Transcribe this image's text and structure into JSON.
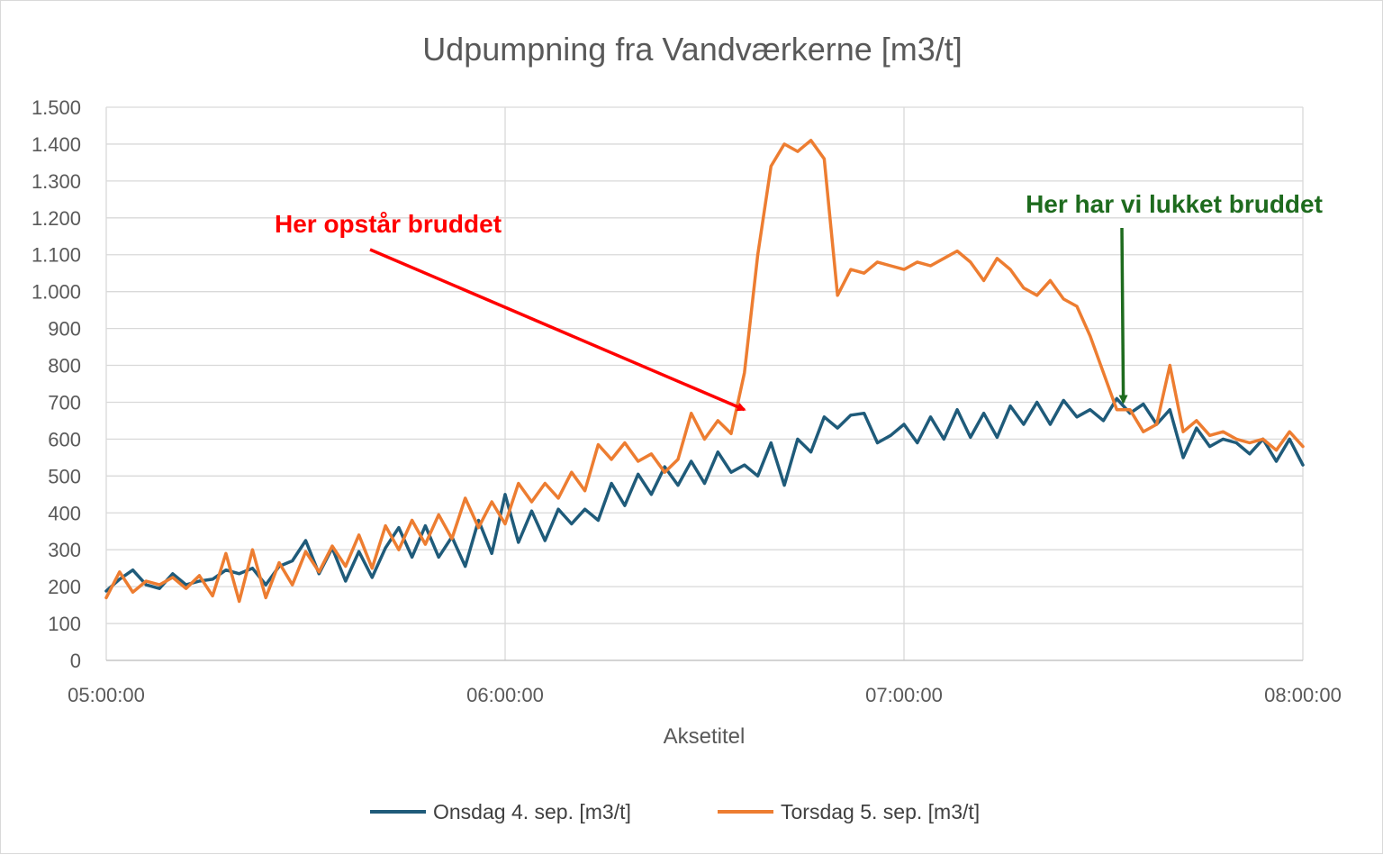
{
  "chart_data": {
    "type": "line",
    "title": "Udpumpning fra Vandværkerne [m3/t]",
    "xlabel": "Aksetitel",
    "ylabel": "",
    "ylim": [
      0,
      1500
    ],
    "y_ticks": [
      0,
      100,
      200,
      300,
      400,
      500,
      600,
      700,
      800,
      900,
      1000,
      1100,
      1200,
      1300,
      1400,
      1500
    ],
    "y_tick_labels": [
      "0",
      "100",
      "200",
      "300",
      "400",
      "500",
      "600",
      "700",
      "800",
      "900",
      "1.000",
      "1.100",
      "1.200",
      "1.300",
      "1.400",
      "1.500"
    ],
    "x_range": [
      "05:00:00",
      "08:00:00"
    ],
    "x_ticks": [
      "05:00:00",
      "06:00:00",
      "07:00:00",
      "08:00:00"
    ],
    "grid": true,
    "legend_position": "bottom",
    "series": [
      {
        "name": "Onsdag 4. sep. [m3/t]",
        "color": "#1f5b7a",
        "points": [
          [
            "05:00:00",
            188
          ],
          [
            "05:02:00",
            220
          ],
          [
            "05:04:00",
            245
          ],
          [
            "05:06:00",
            205
          ],
          [
            "05:08:00",
            195
          ],
          [
            "05:10:00",
            235
          ],
          [
            "05:12:00",
            205
          ],
          [
            "05:14:00",
            215
          ],
          [
            "05:16:00",
            220
          ],
          [
            "05:18:00",
            245
          ],
          [
            "05:20:00",
            235
          ],
          [
            "05:22:00",
            250
          ],
          [
            "05:24:00",
            205
          ],
          [
            "05:26:00",
            255
          ],
          [
            "05:28:00",
            270
          ],
          [
            "05:30:00",
            325
          ],
          [
            "05:32:00",
            235
          ],
          [
            "05:34:00",
            305
          ],
          [
            "05:36:00",
            215
          ],
          [
            "05:38:00",
            295
          ],
          [
            "05:40:00",
            225
          ],
          [
            "05:42:00",
            305
          ],
          [
            "05:44:00",
            360
          ],
          [
            "05:46:00",
            280
          ],
          [
            "05:48:00",
            365
          ],
          [
            "05:50:00",
            280
          ],
          [
            "05:52:00",
            335
          ],
          [
            "05:54:00",
            255
          ],
          [
            "05:56:00",
            380
          ],
          [
            "05:58:00",
            290
          ],
          [
            "06:00:00",
            450
          ],
          [
            "06:02:00",
            320
          ],
          [
            "06:04:00",
            405
          ],
          [
            "06:06:00",
            325
          ],
          [
            "06:08:00",
            410
          ],
          [
            "06:10:00",
            370
          ],
          [
            "06:12:00",
            410
          ],
          [
            "06:14:00",
            380
          ],
          [
            "06:16:00",
            480
          ],
          [
            "06:18:00",
            420
          ],
          [
            "06:20:00",
            505
          ],
          [
            "06:22:00",
            450
          ],
          [
            "06:24:00",
            525
          ],
          [
            "06:26:00",
            475
          ],
          [
            "06:28:00",
            540
          ],
          [
            "06:30:00",
            480
          ],
          [
            "06:32:00",
            565
          ],
          [
            "06:34:00",
            510
          ],
          [
            "06:36:00",
            530
          ],
          [
            "06:38:00",
            500
          ],
          [
            "06:40:00",
            590
          ],
          [
            "06:42:00",
            475
          ],
          [
            "06:44:00",
            600
          ],
          [
            "06:46:00",
            565
          ],
          [
            "06:48:00",
            660
          ],
          [
            "06:50:00",
            630
          ],
          [
            "06:52:00",
            665
          ],
          [
            "06:54:00",
            670
          ],
          [
            "06:56:00",
            590
          ],
          [
            "06:58:00",
            610
          ],
          [
            "07:00:00",
            640
          ],
          [
            "07:02:00",
            590
          ],
          [
            "07:04:00",
            660
          ],
          [
            "07:06:00",
            600
          ],
          [
            "07:08:00",
            680
          ],
          [
            "07:10:00",
            605
          ],
          [
            "07:12:00",
            670
          ],
          [
            "07:14:00",
            605
          ],
          [
            "07:16:00",
            690
          ],
          [
            "07:18:00",
            640
          ],
          [
            "07:20:00",
            700
          ],
          [
            "07:22:00",
            640
          ],
          [
            "07:24:00",
            705
          ],
          [
            "07:26:00",
            660
          ],
          [
            "07:28:00",
            680
          ],
          [
            "07:30:00",
            650
          ],
          [
            "07:32:00",
            710
          ],
          [
            "07:34:00",
            670
          ],
          [
            "07:36:00",
            695
          ],
          [
            "07:38:00",
            640
          ],
          [
            "07:40:00",
            680
          ],
          [
            "07:42:00",
            550
          ],
          [
            "07:44:00",
            630
          ],
          [
            "07:46:00",
            580
          ],
          [
            "07:48:00",
            600
          ],
          [
            "07:50:00",
            590
          ],
          [
            "07:52:00",
            560
          ],
          [
            "07:54:00",
            600
          ],
          [
            "07:56:00",
            540
          ],
          [
            "07:58:00",
            600
          ],
          [
            "08:00:00",
            530
          ]
        ]
      },
      {
        "name": "Torsdag 5. sep. [m3/t]",
        "color": "#ed7d31",
        "points": [
          [
            "05:00:00",
            170
          ],
          [
            "05:02:00",
            240
          ],
          [
            "05:04:00",
            185
          ],
          [
            "05:06:00",
            215
          ],
          [
            "05:08:00",
            205
          ],
          [
            "05:10:00",
            225
          ],
          [
            "05:12:00",
            195
          ],
          [
            "05:14:00",
            230
          ],
          [
            "05:16:00",
            175
          ],
          [
            "05:18:00",
            290
          ],
          [
            "05:20:00",
            160
          ],
          [
            "05:22:00",
            300
          ],
          [
            "05:24:00",
            170
          ],
          [
            "05:26:00",
            265
          ],
          [
            "05:28:00",
            205
          ],
          [
            "05:30:00",
            295
          ],
          [
            "05:32:00",
            240
          ],
          [
            "05:34:00",
            310
          ],
          [
            "05:36:00",
            255
          ],
          [
            "05:38:00",
            340
          ],
          [
            "05:40:00",
            250
          ],
          [
            "05:42:00",
            365
          ],
          [
            "05:44:00",
            300
          ],
          [
            "05:46:00",
            380
          ],
          [
            "05:48:00",
            315
          ],
          [
            "05:50:00",
            395
          ],
          [
            "05:52:00",
            330
          ],
          [
            "05:54:00",
            440
          ],
          [
            "05:56:00",
            360
          ],
          [
            "05:58:00",
            430
          ],
          [
            "06:00:00",
            370
          ],
          [
            "06:02:00",
            480
          ],
          [
            "06:04:00",
            430
          ],
          [
            "06:06:00",
            480
          ],
          [
            "06:08:00",
            440
          ],
          [
            "06:10:00",
            510
          ],
          [
            "06:12:00",
            460
          ],
          [
            "06:14:00",
            585
          ],
          [
            "06:16:00",
            545
          ],
          [
            "06:18:00",
            590
          ],
          [
            "06:20:00",
            540
          ],
          [
            "06:22:00",
            560
          ],
          [
            "06:24:00",
            510
          ],
          [
            "06:26:00",
            545
          ],
          [
            "06:28:00",
            670
          ],
          [
            "06:30:00",
            600
          ],
          [
            "06:32:00",
            650
          ],
          [
            "06:34:00",
            615
          ],
          [
            "06:36:00",
            780
          ],
          [
            "06:38:00",
            1100
          ],
          [
            "06:40:00",
            1340
          ],
          [
            "06:42:00",
            1400
          ],
          [
            "06:44:00",
            1380
          ],
          [
            "06:46:00",
            1410
          ],
          [
            "06:48:00",
            1360
          ],
          [
            "06:50:00",
            990
          ],
          [
            "06:52:00",
            1060
          ],
          [
            "06:54:00",
            1050
          ],
          [
            "06:56:00",
            1080
          ],
          [
            "06:58:00",
            1070
          ],
          [
            "07:00:00",
            1060
          ],
          [
            "07:02:00",
            1080
          ],
          [
            "07:04:00",
            1070
          ],
          [
            "07:06:00",
            1090
          ],
          [
            "07:08:00",
            1110
          ],
          [
            "07:10:00",
            1080
          ],
          [
            "07:12:00",
            1030
          ],
          [
            "07:14:00",
            1090
          ],
          [
            "07:16:00",
            1060
          ],
          [
            "07:18:00",
            1010
          ],
          [
            "07:20:00",
            990
          ],
          [
            "07:22:00",
            1030
          ],
          [
            "07:24:00",
            980
          ],
          [
            "07:26:00",
            960
          ],
          [
            "07:28:00",
            880
          ],
          [
            "07:30:00",
            780
          ],
          [
            "07:32:00",
            680
          ],
          [
            "07:34:00",
            680
          ],
          [
            "07:36:00",
            620
          ],
          [
            "07:38:00",
            640
          ],
          [
            "07:40:00",
            800
          ],
          [
            "07:42:00",
            620
          ],
          [
            "07:44:00",
            650
          ],
          [
            "07:46:00",
            610
          ],
          [
            "07:48:00",
            620
          ],
          [
            "07:50:00",
            600
          ],
          [
            "07:52:00",
            590
          ],
          [
            "07:54:00",
            600
          ],
          [
            "07:56:00",
            570
          ],
          [
            "07:58:00",
            620
          ],
          [
            "08:00:00",
            580
          ]
        ]
      }
    ],
    "annotations": [
      {
        "text": "Her opstår bruddet",
        "color": "#ff0000",
        "points_to": [
          "06:36:00",
          670
        ]
      },
      {
        "text": "Her har vi lukket bruddet",
        "color": "#1e6b1e",
        "points_to": [
          "07:33:00",
          690
        ]
      }
    ]
  }
}
